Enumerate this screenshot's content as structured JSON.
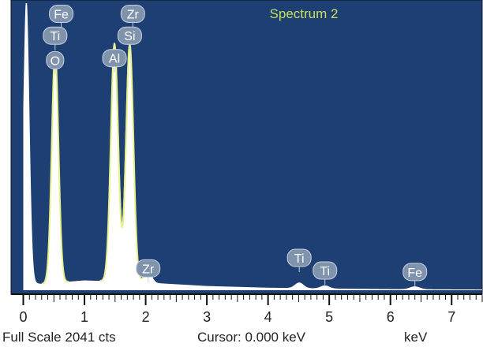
{
  "chart_data": {
    "type": "line",
    "title": "Spectrum 2",
    "xlabel": "keV",
    "xlim": [
      -0.2,
      7.5
    ],
    "ylim": [
      0,
      2041
    ],
    "x_ticks": [
      0,
      1,
      2,
      3,
      4,
      5,
      6,
      7
    ],
    "full_scale_text": "Full Scale 2041 cts",
    "cursor_text": "Cursor: 0.000 keV",
    "unit_text": "keV",
    "grid": false,
    "colors": {
      "background": "#1d3f73",
      "spectrum": "#ffffff",
      "spectrum_edge": "#e8f08a",
      "title": "#c6e05a",
      "label_bubble": "#7f93ad"
    },
    "peaks": [
      {
        "energy": 0.05,
        "height": 2041,
        "width": 0.05,
        "edge": "#ffffff"
      },
      {
        "energy": 0.52,
        "height": 1640,
        "width": 0.055,
        "edge": "#e8f08a"
      },
      {
        "energy": 1.49,
        "height": 1690,
        "width": 0.06,
        "edge": "#e8f08a"
      },
      {
        "energy": 1.74,
        "height": 1690,
        "width": 0.06,
        "edge": "#e8f08a"
      },
      {
        "energy": 2.04,
        "height": 85,
        "width": 0.06,
        "edge": "#ffffff"
      },
      {
        "energy": 4.51,
        "height": 40,
        "width": 0.07,
        "edge": "#ffffff"
      },
      {
        "energy": 4.93,
        "height": 22,
        "width": 0.07,
        "edge": "#ffffff"
      },
      {
        "energy": 6.4,
        "height": 20,
        "width": 0.08,
        "edge": "#ffffff"
      }
    ],
    "background_counts": [
      {
        "energy": 0.0,
        "counts": 60
      },
      {
        "energy": 0.3,
        "counts": 45
      },
      {
        "energy": 1.0,
        "counts": 70
      },
      {
        "energy": 2.0,
        "counts": 55
      },
      {
        "energy": 3.0,
        "counts": 30
      },
      {
        "energy": 4.0,
        "counts": 18
      },
      {
        "energy": 5.0,
        "counts": 12
      },
      {
        "energy": 6.0,
        "counts": 8
      },
      {
        "energy": 7.5,
        "counts": 5
      }
    ],
    "labels": [
      {
        "element": "Fe",
        "energy": 0.62,
        "counts": 1965
      },
      {
        "element": "Ti",
        "energy": 0.52,
        "counts": 1810
      },
      {
        "element": "O",
        "energy": 0.52,
        "counts": 1635
      },
      {
        "element": "Zr",
        "energy": 1.79,
        "counts": 1965
      },
      {
        "element": "Si",
        "energy": 1.74,
        "counts": 1810
      },
      {
        "element": "Al",
        "energy": 1.49,
        "counts": 1650
      },
      {
        "element": "Zr",
        "energy": 2.04,
        "counts": 155
      },
      {
        "element": "Ti",
        "energy": 4.51,
        "counts": 230
      },
      {
        "element": "Ti",
        "energy": 4.93,
        "counts": 140
      },
      {
        "element": "Fe",
        "energy": 6.4,
        "counts": 130
      }
    ]
  }
}
